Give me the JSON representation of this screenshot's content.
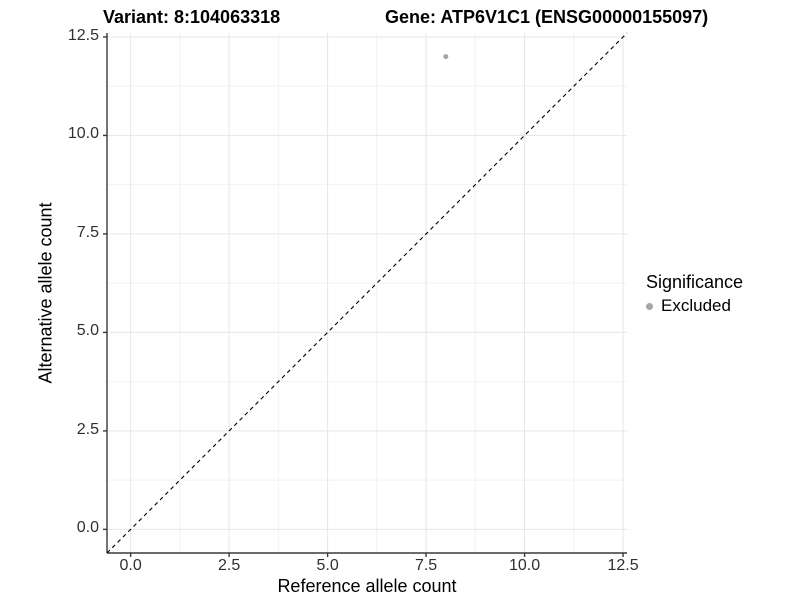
{
  "header": {
    "title_left": "Variant: 8:104063318",
    "title_right": "Gene: ATP6V1C1 (ENSG00000155097)"
  },
  "legend": {
    "title": "Significance",
    "items": [
      {
        "label": "Excluded",
        "color": "#a5a5a5"
      }
    ],
    "position": "right"
  },
  "chart_data": {
    "type": "scatter",
    "title_left": "Variant: 8:104063318",
    "title_right": "Gene: ATP6V1C1 (ENSG00000155097)",
    "xlabel": "Reference allele count",
    "ylabel": "Alternative allele count",
    "xlim": [
      -0.6,
      12.6
    ],
    "ylim": [
      -0.6,
      12.6
    ],
    "x_ticks": [
      0,
      2.5,
      5,
      7.5,
      10,
      12.5
    ],
    "y_ticks": [
      0,
      2.5,
      5,
      7.5,
      10,
      12.5
    ],
    "x_tick_labels": [
      "0.0",
      "2.5",
      "5.0",
      "7.5",
      "10.0",
      "12.5"
    ],
    "y_tick_labels": [
      "0.0",
      "2.5",
      "5.0",
      "7.5",
      "10.0",
      "12.5"
    ],
    "x_minor_ticks": [
      1.25,
      3.75,
      6.25,
      8.75,
      11.25
    ],
    "y_minor_ticks": [
      1.25,
      3.75,
      6.25,
      8.75,
      11.25
    ],
    "grid": true,
    "legend_position": "right",
    "series": [
      {
        "name": "Excluded",
        "color": "#a5a5a5",
        "marker_radius": 2.5,
        "points": [
          {
            "x": 8,
            "y": 12
          }
        ]
      }
    ],
    "reference_line": {
      "type": "identity",
      "style": "dashed",
      "color": "#000000",
      "from": [
        -0.6,
        -0.6
      ],
      "to": [
        12.6,
        12.6
      ]
    },
    "colors": {
      "grid_major": "#e6e6e6",
      "grid_minor": "#f2f2f2",
      "axis_line": "#3a3a3a",
      "tick_mark": "#3a3a3a",
      "tick_text": "#303030",
      "background": "#ffffff"
    }
  }
}
